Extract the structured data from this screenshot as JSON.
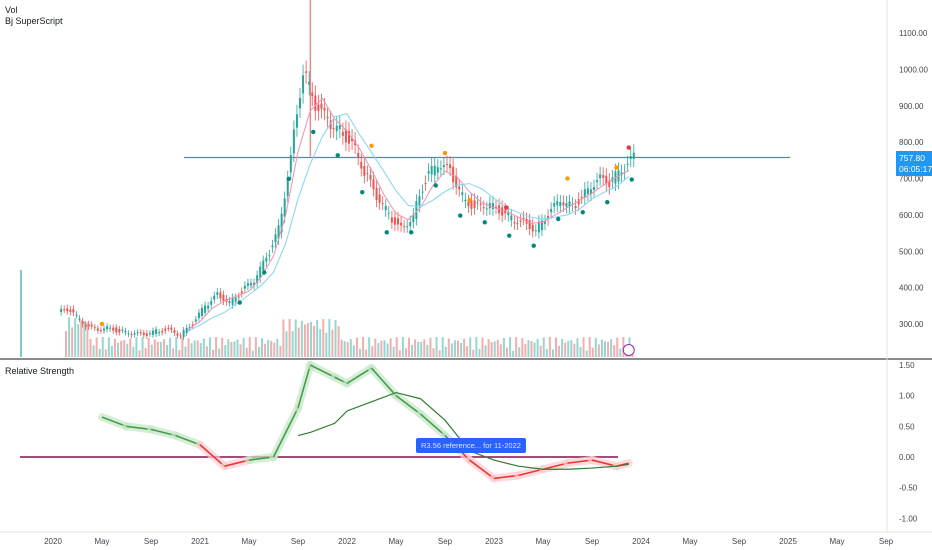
{
  "legend": {
    "vol": "Vol",
    "indicator": "Bj SuperScript",
    "rs_title": "Relative Strength"
  },
  "price_axis": [
    "1100.00",
    "1000.00",
    "900.00",
    "800.00",
    "700.00",
    "600.00",
    "500.00",
    "400.00",
    "300.00"
  ],
  "rs_axis": [
    "1.50",
    "1.00",
    "0.50",
    "0.00",
    "-0.50",
    "-1.00"
  ],
  "x_axis": [
    "2020",
    "May",
    "Sep",
    "2021",
    "May",
    "Sep",
    "2022",
    "May",
    "Sep",
    "2023",
    "May",
    "Sep",
    "2024",
    "May",
    "Sep",
    "2025",
    "May",
    "Sep"
  ],
  "last_price": {
    "price": "757.80",
    "countdown": "06:05:17"
  },
  "tooltip": "R3.56 reference... for 11-2022",
  "colors": {
    "up": "#26a69a",
    "down": "#ef5350",
    "level": "#2196f3",
    "rs_up": "#43a047",
    "rs_down": "#e53935",
    "rs_ma": "#2e7d32",
    "zero": "#880e4f"
  },
  "chart_data": [
    {
      "type": "candlestick",
      "title": "",
      "ylim": [
        250,
        1200
      ],
      "resistance_level": 757.8,
      "x": [
        "2020-02",
        "2020-03",
        "2020-04",
        "2020-05",
        "2020-06",
        "2020-07",
        "2020-08",
        "2020-09",
        "2020-10",
        "2020-11",
        "2020-12",
        "2021-01",
        "2021-02",
        "2021-03",
        "2021-04",
        "2021-05",
        "2021-06",
        "2021-07",
        "2021-08",
        "2021-09",
        "2021-10",
        "2021-11",
        "2021-12",
        "2022-01",
        "2022-02",
        "2022-03",
        "2022-04",
        "2022-05",
        "2022-06",
        "2022-07",
        "2022-08",
        "2022-09",
        "2022-10",
        "2022-11",
        "2022-12",
        "2023-01",
        "2023-02",
        "2023-03",
        "2023-04",
        "2023-05",
        "2023-06",
        "2023-07",
        "2023-08",
        "2023-09",
        "2023-10",
        "2023-11",
        "2023-12"
      ],
      "close": [
        340,
        300,
        285,
        290,
        280,
        275,
        270,
        280,
        285,
        270,
        300,
        350,
        380,
        360,
        390,
        420,
        480,
        560,
        760,
        1000,
        900,
        860,
        830,
        800,
        720,
        650,
        600,
        560,
        600,
        700,
        740,
        720,
        650,
        620,
        630,
        610,
        590,
        580,
        560,
        600,
        640,
        620,
        660,
        700,
        690,
        720,
        757.8
      ]
    },
    {
      "type": "line",
      "title": "",
      "ylim": [
        -1.1,
        1.55
      ],
      "zero_line": 0,
      "x": [
        "2020-05",
        "2020-07",
        "2020-09",
        "2020-11",
        "2021-01",
        "2021-03",
        "2021-05",
        "2021-07",
        "2021-09",
        "2021-10",
        "2021-12",
        "2022-01",
        "2022-03",
        "2022-05",
        "2022-07",
        "2022-09",
        "2022-10",
        "2022-11",
        "2023-01",
        "2023-03",
        "2023-05",
        "2023-07",
        "2023-09",
        "2023-11",
        "2023-12"
      ],
      "series": [
        {
          "values": [
            0.65,
            0.5,
            0.45,
            0.35,
            0.2,
            -0.15,
            -0.05,
            0.0,
            0.8,
            1.5,
            1.3,
            1.2,
            1.45,
            1.0,
            0.7,
            0.35,
            0.15,
            -0.05,
            -0.35,
            -0.3,
            -0.2,
            -0.1,
            -0.05,
            -0.15,
            -0.1
          ]
        },
        {
          "values": [
            null,
            null,
            null,
            null,
            null,
            null,
            null,
            null,
            0.35,
            0.4,
            0.55,
            0.75,
            0.9,
            1.05,
            0.95,
            0.6,
            0.35,
            0.1,
            -0.05,
            -0.15,
            -0.2,
            -0.2,
            -0.18,
            -0.15,
            -0.12
          ]
        }
      ]
    }
  ]
}
